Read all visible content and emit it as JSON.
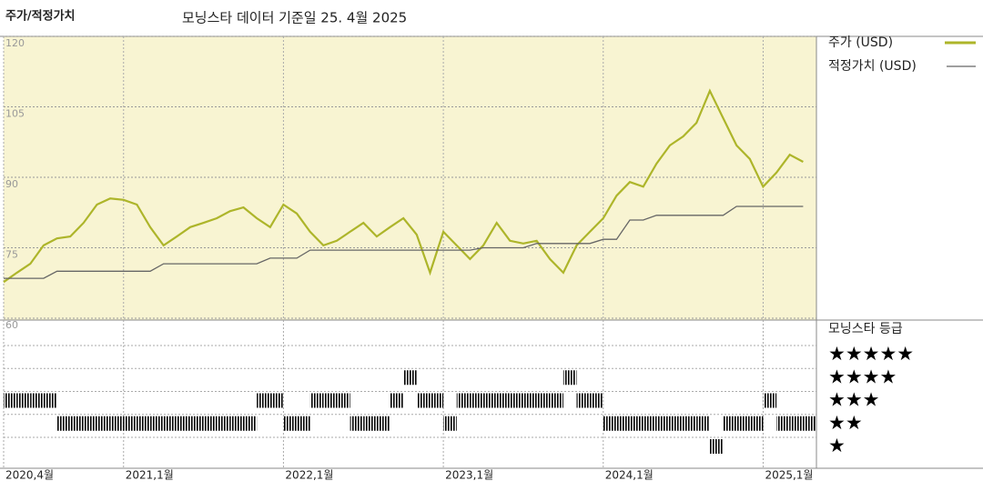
{
  "chart_data": {
    "type": "line",
    "title": "주가/적정가치",
    "subtitle": "모닝스타 데이터 기준일 25. 4월 2025",
    "x": [
      "2020-04",
      "2020-05",
      "2020-06",
      "2020-07",
      "2020-08",
      "2020-09",
      "2020-10",
      "2020-11",
      "2020-12",
      "2021-01",
      "2021-02",
      "2021-03",
      "2021-04",
      "2021-05",
      "2021-06",
      "2021-07",
      "2021-08",
      "2021-09",
      "2021-10",
      "2021-11",
      "2021-12",
      "2022-01",
      "2022-02",
      "2022-03",
      "2022-04",
      "2022-05",
      "2022-06",
      "2022-07",
      "2022-08",
      "2022-09",
      "2022-10",
      "2022-11",
      "2022-12",
      "2023-01",
      "2023-02",
      "2023-03",
      "2023-04",
      "2023-05",
      "2023-06",
      "2023-07",
      "2023-08",
      "2023-09",
      "2023-10",
      "2023-11",
      "2023-12",
      "2024-01",
      "2024-02",
      "2024-03",
      "2024-04",
      "2024-05",
      "2024-06",
      "2024-07",
      "2024-08",
      "2024-09",
      "2024-10",
      "2024-11",
      "2024-12",
      "2025-01",
      "2025-02",
      "2025-03",
      "2025-04"
    ],
    "xlim": [
      "2020-04",
      "2025-05"
    ],
    "xticks": [
      {
        "value": "2020-04",
        "label": "2020,4월"
      },
      {
        "value": "2021-01",
        "label": "2021,1월"
      },
      {
        "value": "2022-01",
        "label": "2022,1월"
      },
      {
        "value": "2023-01",
        "label": "2023,1월"
      },
      {
        "value": "2024-01",
        "label": "2024,1월"
      },
      {
        "value": "2025-01",
        "label": "2025,1월"
      }
    ],
    "ylim": [
      60,
      120
    ],
    "yticks": [
      60,
      75,
      90,
      105,
      120
    ],
    "series": [
      {
        "name": "주가 (USD)",
        "color": "#adb52a",
        "values": [
          67.7,
          69.7,
          71.6,
          75.5,
          77,
          77.4,
          80.3,
          84.2,
          85.5,
          85.2,
          84.2,
          79.4,
          75.5,
          77.4,
          79.4,
          80.3,
          81.3,
          82.8,
          83.6,
          81.3,
          79.4,
          84.2,
          82.3,
          78.4,
          75.5,
          76.5,
          78.4,
          80.3,
          77.4,
          79.4,
          81.3,
          77.8,
          69.7,
          78.4,
          75.5,
          72.6,
          75.5,
          80.3,
          76.5,
          75.9,
          76.5,
          72.6,
          69.7,
          75.5,
          78.4,
          81.3,
          86.1,
          89,
          88,
          92.9,
          96.8,
          98.7,
          101.6,
          108.4,
          102.6,
          96.8,
          93.9,
          88,
          91,
          94.8,
          93.3
        ]
      },
      {
        "name": "적정가치 (USD)",
        "color": "#666666",
        "values": [
          68.5,
          68.5,
          68.5,
          68.5,
          70,
          70,
          70,
          70,
          70,
          70,
          70,
          70,
          71.6,
          71.6,
          71.6,
          71.6,
          71.6,
          71.6,
          71.6,
          71.6,
          72.8,
          72.8,
          72.8,
          74.5,
          74.5,
          74.5,
          74.5,
          74.5,
          74.5,
          74.5,
          74.5,
          74.5,
          74.5,
          74.5,
          74.5,
          74.5,
          75,
          75,
          75,
          75,
          75.9,
          75.9,
          75.9,
          75.9,
          75.9,
          76.8,
          76.8,
          80.9,
          80.9,
          81.9,
          81.9,
          81.9,
          81.9,
          81.9,
          81.9,
          83.8,
          83.8,
          83.8,
          83.8,
          83.8,
          83.8
        ]
      }
    ],
    "ratings": {
      "name": "모닝스타 등급",
      "color": "#000000",
      "labels": [
        "★★★★★",
        "★★★★",
        "★★★",
        "★★",
        "★"
      ],
      "values": [
        3,
        3,
        3,
        3,
        2,
        2,
        2,
        2,
        2,
        2,
        2,
        2,
        2,
        2,
        2,
        2,
        2,
        2,
        2,
        3,
        3,
        2,
        2,
        3,
        3,
        3,
        2,
        2,
        2,
        3,
        4,
        3,
        3,
        2,
        3,
        3,
        3,
        3,
        3,
        3,
        3,
        3,
        4,
        3,
        3,
        2,
        2,
        2,
        2,
        2,
        2,
        2,
        2,
        1,
        2,
        2,
        2,
        3,
        2,
        2,
        2
      ]
    }
  }
}
